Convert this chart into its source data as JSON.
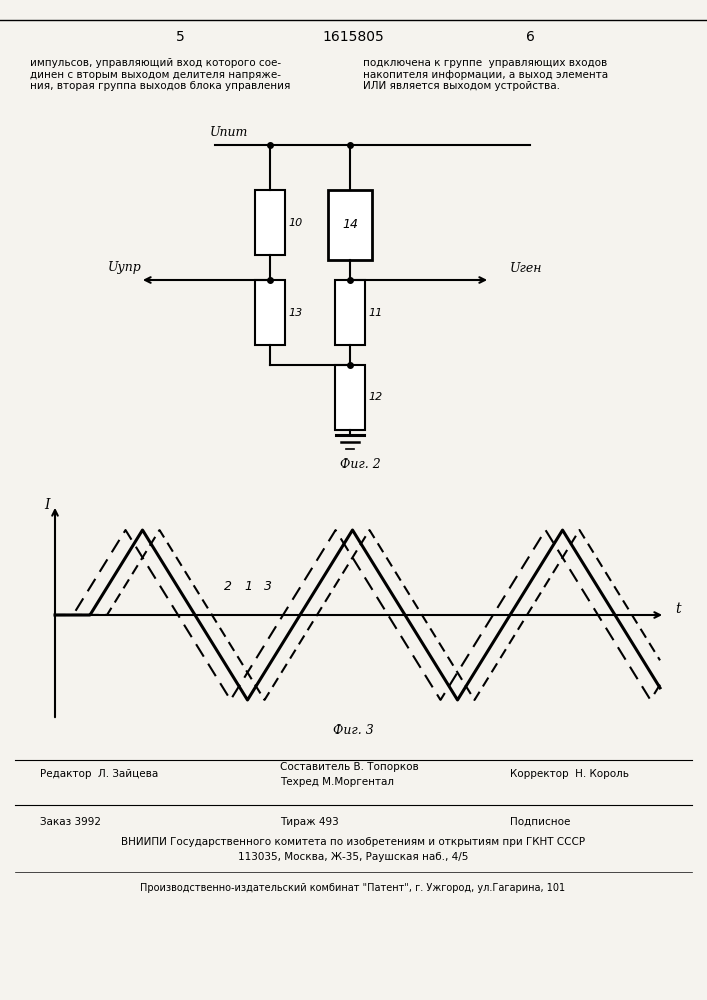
{
  "bg_color": "#f5f3ee",
  "page_number_left": "5",
  "page_number_center": "1615805",
  "page_number_right": "6",
  "text_left": "импульсов, управляющий вход которого сое-\nдинен с вторым выходом делителя напряже-\nния, вторая группа выходов блока управления",
  "text_right": "подключена к группе  управляющих входов\nнакопителя информации, а выход элемента\nИЛИ является выходом устройства.",
  "fig2_caption": "Фиг. 2",
  "fig3_caption": "Фиг. 3",
  "upit_label": "Uпит",
  "uupr_label": "Uупр",
  "ugen_label": "Uген",
  "I_label": "I",
  "t_label": "t",
  "footer_editor": "Редактор  Л. Зайцева",
  "footer_composer": "Составитель В. Топорков",
  "footer_techred": "Техред М.Моргентал",
  "footer_corrector": "Корректор  Н. Король",
  "footer_order": "Заказ 3992",
  "footer_tirazh": "Тираж 493",
  "footer_podpisnoe": "Подписное",
  "footer_vniipи": "ВНИИПИ Государственного комитета по изобретениям и открытиям при ГКНТ СССР",
  "footer_address": "113035, Москва, Ж-35, Раушская наб., 4/5",
  "footer_production": "Производственно-издательский комбинат \"Патент\", г. Ужгород, ул.Гагарина, 101"
}
